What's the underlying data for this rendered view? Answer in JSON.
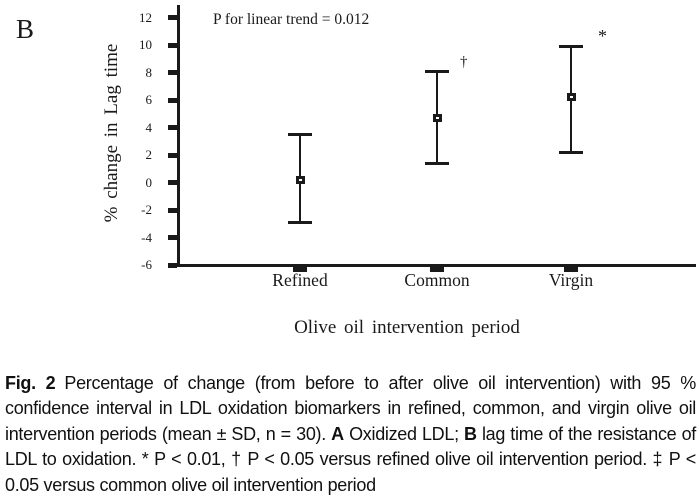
{
  "panel_label": "B",
  "colors": {
    "ink": "#1a1a1a",
    "caption_text": "#111111",
    "background": "#ffffff"
  },
  "chart_data": {
    "type": "scatter",
    "subtype": "mean-with-95ci-error-bars",
    "title": "",
    "annotation": "P for linear trend = 0.012",
    "xlabel": "Olive oil intervention period",
    "ylabel": "% change in Lag time",
    "ylim": [
      -6,
      12
    ],
    "ytick_step": 2,
    "yticks": [
      12,
      10,
      8,
      6,
      4,
      2,
      0,
      -2,
      -4,
      -6
    ],
    "categories": [
      "Refined",
      "Common",
      "Virgin"
    ],
    "grid": false,
    "legend": null,
    "points": [
      {
        "category": "Refined",
        "mean": 0.2,
        "ci_low": -2.9,
        "ci_high": 3.5,
        "symbol": "",
        "symbol_v": 0,
        "symbol_dx": 0
      },
      {
        "category": "Common",
        "mean": 4.7,
        "ci_low": 1.4,
        "ci_high": 8.1,
        "symbol": "†",
        "symbol_v": 9.3,
        "symbol_dx": 23
      },
      {
        "category": "Virgin",
        "mean": 6.2,
        "ci_low": 2.2,
        "ci_high": 9.9,
        "symbol": "*",
        "symbol_v": 11.3,
        "symbol_dx": 27
      }
    ]
  },
  "caption": {
    "fig_label": "Fig. 2",
    "text_1": "Percentage of change (from before to after olive oil intervention) with 95 % confidence interval in LDL oxidation biomarkers in refined, common, and virgin olive oil intervention periods (mean ± SD, n = 30). ",
    "a_label": "A",
    "text_2": " Oxidized LDL; ",
    "b_label": "B",
    "text_3": " lag time of the resistance of LDL to oxidation. * P < 0.01, † P < 0.05 versus refined olive oil intervention period. ‡ P < 0.05 versus common olive oil intervention period"
  }
}
